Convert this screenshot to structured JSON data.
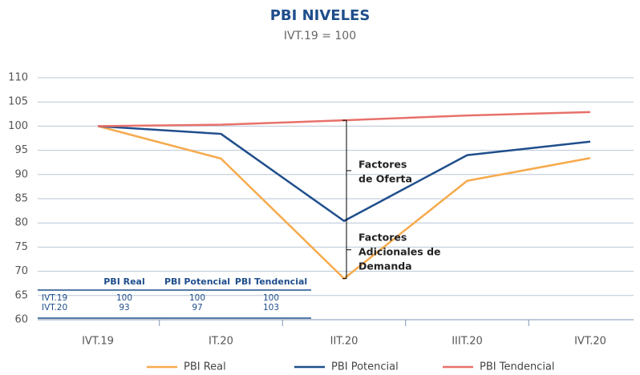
{
  "chart_data": {
    "type": "line",
    "title": "PBI NIVELES",
    "subtitle": "IVT.19 = 100",
    "categories": [
      "IVT.19",
      "IT.20",
      "IIT.20",
      "IIIT.20",
      "IVT.20"
    ],
    "series": [
      {
        "name": "PBI Real",
        "color": "#f6aa4c",
        "values": [
          100,
          93.3,
          68.5,
          88.7,
          93.4
        ]
      },
      {
        "name": "PBI Potencial",
        "color": "#1f4e8c",
        "values": [
          100,
          98.4,
          80.4,
          94.0,
          96.8
        ]
      },
      {
        "name": "PBI Tendencial",
        "color": "#e8716b",
        "values": [
          100,
          100.3,
          101.2,
          102.2,
          102.9
        ]
      }
    ],
    "ylim": [
      60,
      110
    ],
    "yticks": [
      60,
      65,
      70,
      75,
      80,
      85,
      90,
      95,
      100,
      105,
      110
    ],
    "grid": true,
    "annotations": [
      {
        "lines": [
          "Factores",
          "de Oferta"
        ]
      },
      {
        "lines": [
          "Factores",
          "Adicionales de",
          "Demanda"
        ]
      }
    ],
    "table": {
      "columns": [
        "PBI Real",
        "PBI Potencial",
        "PBI Tendencial"
      ],
      "rows": [
        {
          "label": "IVT.19",
          "values": [
            100,
            100,
            100
          ]
        },
        {
          "label": "IVT.20",
          "values": [
            93,
            97,
            103
          ]
        }
      ]
    }
  }
}
